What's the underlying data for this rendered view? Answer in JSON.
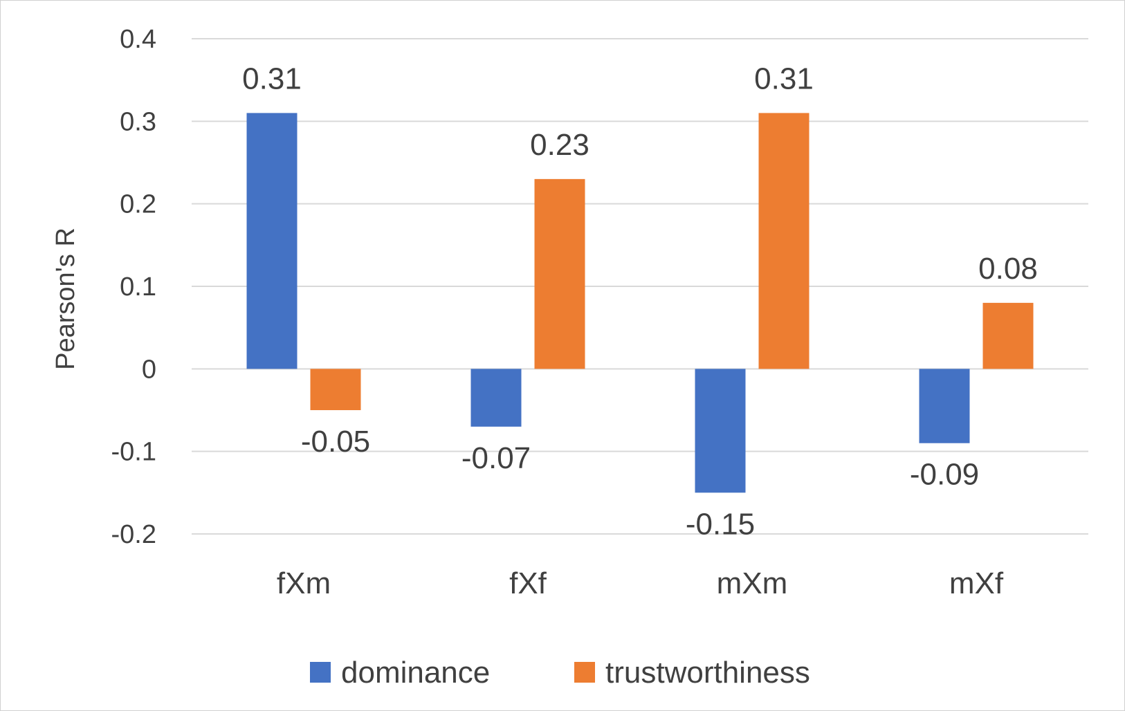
{
  "chart_data": {
    "type": "bar",
    "title": "",
    "xlabel": "",
    "ylabel": "Pearson's R",
    "ylim": [
      -0.2,
      0.4
    ],
    "yticks": [
      0.4,
      0.3,
      0.2,
      0.1,
      0,
      -0.1,
      -0.2
    ],
    "ytick_labels": [
      "0.4",
      "0.3",
      "0.2",
      "0.1",
      "0",
      "-0.1",
      "-0.2"
    ],
    "grid": true,
    "legend_position": "bottom",
    "categories": [
      "fXm",
      "fXf",
      "mXm",
      "mXf"
    ],
    "series": [
      {
        "name": "dominance",
        "color": "#4472C4",
        "values": [
          0.31,
          -0.07,
          -0.15,
          -0.09
        ],
        "labels": [
          "0.31",
          "-0.07",
          "-0.15",
          "-0.09"
        ]
      },
      {
        "name": "trustworthiness",
        "color": "#ED7D31",
        "values": [
          -0.05,
          0.23,
          0.31,
          0.08
        ],
        "labels": [
          "-0.05",
          "0.23",
          "0.31",
          "0.08"
        ]
      }
    ]
  }
}
